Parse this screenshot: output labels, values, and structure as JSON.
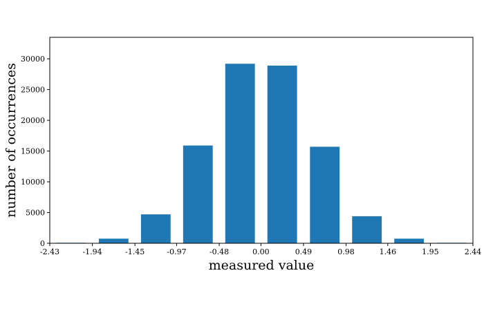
{
  "chart_data": {
    "type": "bar",
    "xlabel": "measured value",
    "ylabel": "number of occurrences",
    "bar_color": "#1f77b4",
    "xlim": [
      -2.43,
      2.44
    ],
    "ylim": [
      0,
      33500
    ],
    "grid": false,
    "bins": [
      {
        "center": -2.185,
        "value": 80
      },
      {
        "center": -1.695,
        "value": 750
      },
      {
        "center": -1.21,
        "value": 4700
      },
      {
        "center": -0.725,
        "value": 15900
      },
      {
        "center": -0.24,
        "value": 29200
      },
      {
        "center": 0.245,
        "value": 28900
      },
      {
        "center": 0.735,
        "value": 15700
      },
      {
        "center": 1.22,
        "value": 4400
      },
      {
        "center": 1.705,
        "value": 750
      },
      {
        "center": 2.195,
        "value": 80
      }
    ],
    "x_ticks": [
      {
        "value": -2.43,
        "label": "-2.43"
      },
      {
        "value": -1.94,
        "label": "-1.94"
      },
      {
        "value": -1.45,
        "label": "-1.45"
      },
      {
        "value": -0.97,
        "label": "-0.97"
      },
      {
        "value": -0.48,
        "label": "-0.48"
      },
      {
        "value": 0.0,
        "label": "0.00"
      },
      {
        "value": 0.49,
        "label": "0.49"
      },
      {
        "value": 0.98,
        "label": "0.98"
      },
      {
        "value": 1.46,
        "label": "1.46"
      },
      {
        "value": 1.95,
        "label": "1.95"
      },
      {
        "value": 2.44,
        "label": "2.44"
      }
    ],
    "y_ticks": [
      {
        "value": 0,
        "label": "0"
      },
      {
        "value": 5000,
        "label": "5000"
      },
      {
        "value": 10000,
        "label": "10000"
      },
      {
        "value": 15000,
        "label": "15000"
      },
      {
        "value": 20000,
        "label": "20000"
      },
      {
        "value": 25000,
        "label": "25000"
      },
      {
        "value": 30000,
        "label": "30000"
      }
    ]
  }
}
